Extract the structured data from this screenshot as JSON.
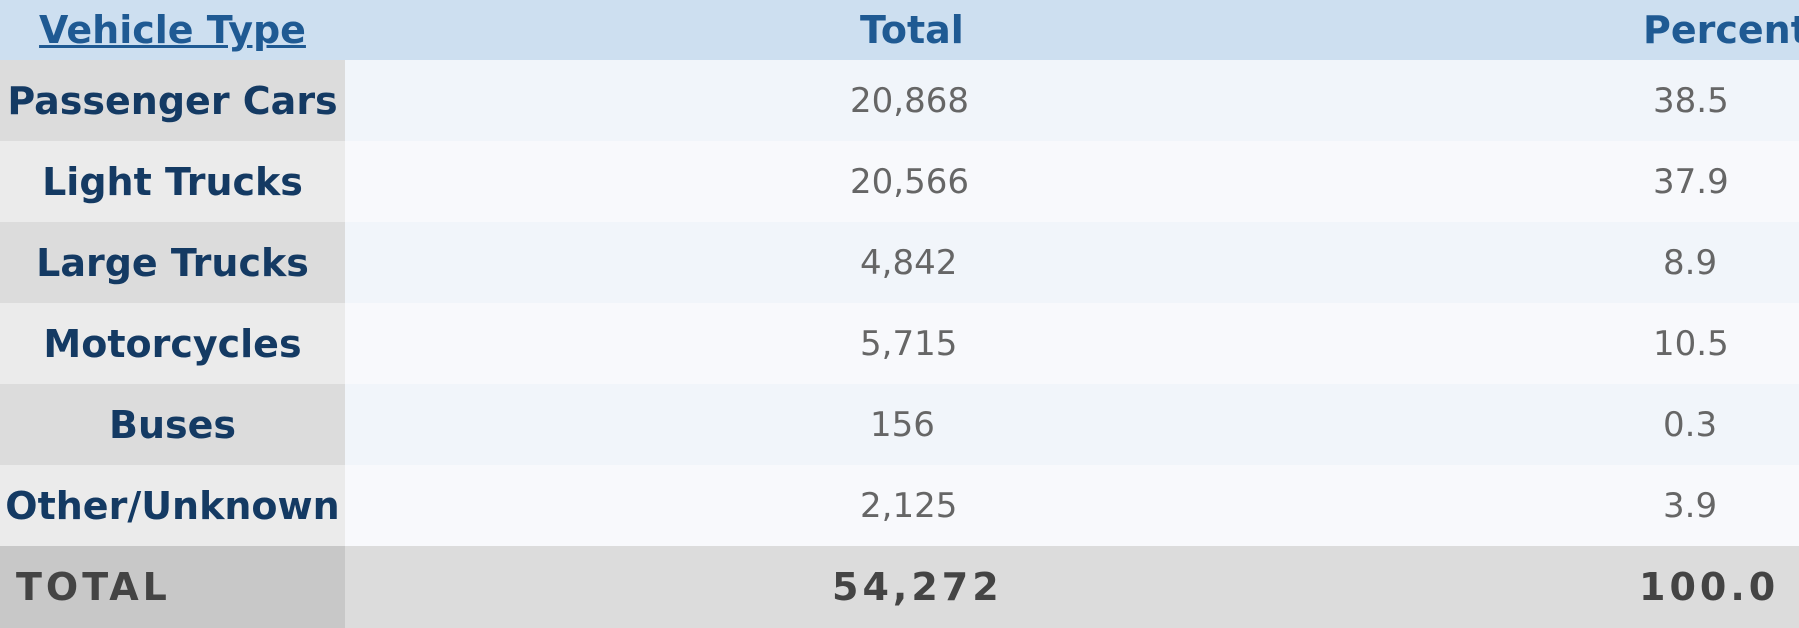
{
  "table": {
    "headers": {
      "vehicle_type": "Vehicle Type",
      "total": "Total",
      "percent": "Percent"
    },
    "rows": [
      {
        "label": "Passenger Cars",
        "total": "20,868",
        "percent": "38.5"
      },
      {
        "label": "Light Trucks",
        "total": "20,566",
        "percent": "37.9"
      },
      {
        "label": "Large Trucks",
        "total": "4,842",
        "percent": "8.9"
      },
      {
        "label": "Motorcycles",
        "total": "5,715",
        "percent": "10.5"
      },
      {
        "label": "Buses",
        "total": "156",
        "percent": "0.3"
      },
      {
        "label": "Other/Unknown",
        "total": "2,125",
        "percent": "3.9"
      }
    ],
    "total_row": {
      "label": "TOTAL",
      "total": "54,272",
      "percent": "100.0"
    }
  },
  "colors": {
    "header_bg": "#cddff0",
    "header_text": "#1f5a93",
    "label_text": "#143a63",
    "value_text": "#666666",
    "total_bg": "#dcdcdc"
  }
}
